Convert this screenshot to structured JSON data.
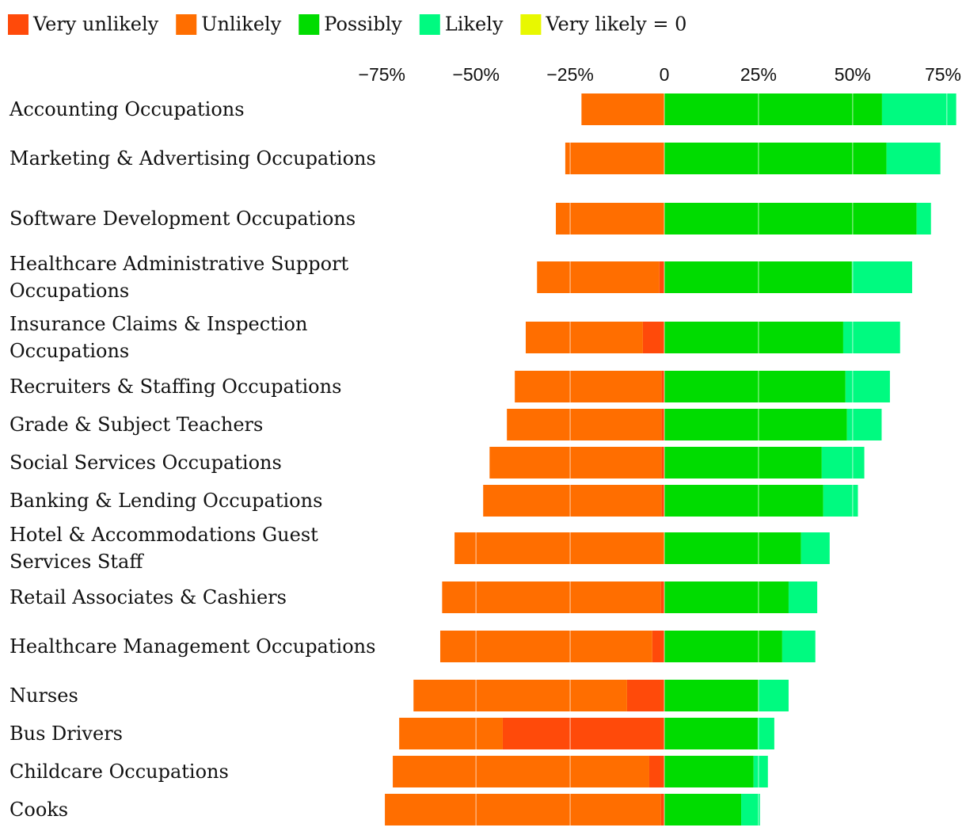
{
  "chart_data": {
    "type": "diverging-stacked-bar",
    "categories": [
      "Accounting Occupations",
      "Marketing & Advertising Occupations",
      "Software Development Occupations",
      "Healthcare Administrative Support Occupations",
      "Insurance Claims & Inspection Occupations",
      "Recruiters & Staffing Occupations",
      "Grade & Subject Teachers",
      "Social Services Occupations",
      "Banking & Lending Occupations",
      "Hotel & Accommodations Guest Services Staff",
      "Retail Associates & Cashiers",
      "Healthcare Management Occupations",
      "Nurses",
      "Bus Drivers",
      "Childcare Occupations",
      "Cooks"
    ],
    "series": [
      {
        "name": "Very unlikely",
        "color": "#ff4a0a",
        "values": [
          0,
          0,
          0,
          -1.3,
          -5.7,
          -0.8,
          -0.8,
          -0.8,
          -0.8,
          0,
          -1,
          -3.2,
          -9.9,
          -42.9,
          -4,
          -1
        ]
      },
      {
        "name": "Unlikely",
        "color": "#ff6e00",
        "values": [
          -22,
          -26.3,
          -28.8,
          -32.5,
          -31.1,
          -38.9,
          -41,
          -45.6,
          -47.3,
          -55.7,
          -58,
          -56.3,
          -56.7,
          -27.5,
          -68.1,
          -73.2
        ]
      },
      {
        "name": "Possibly",
        "color": "#00dc00",
        "values": [
          57.8,
          59,
          67,
          49.8,
          47.5,
          48.1,
          48.5,
          41.8,
          42.2,
          36.3,
          33,
          31.3,
          25,
          24.8,
          23.7,
          20.4
        ]
      },
      {
        "name": "Likely",
        "color": "#00fa80",
        "values": [
          19.7,
          14.3,
          3.8,
          16,
          15.1,
          11.8,
          9.2,
          11.3,
          9.2,
          7.6,
          7.6,
          8.8,
          8,
          4.4,
          3.8,
          5
        ]
      },
      {
        "name": "Very likely = 0",
        "color": "#e8f800",
        "values": [
          0,
          0,
          0,
          0,
          0,
          0,
          0,
          0,
          0,
          0,
          0,
          0,
          0,
          0,
          0,
          0
        ]
      }
    ],
    "xlim": [
      -78,
      78
    ],
    "xticks": [
      {
        "value": -75,
        "label": "−75%"
      },
      {
        "value": -50,
        "label": "−50%"
      },
      {
        "value": -25,
        "label": "−25%"
      },
      0,
      {
        "value": 25,
        "label": "25%"
      },
      {
        "value": 50,
        "label": "50%"
      },
      {
        "value": 75,
        "label": "75%"
      }
    ],
    "grid": true
  }
}
